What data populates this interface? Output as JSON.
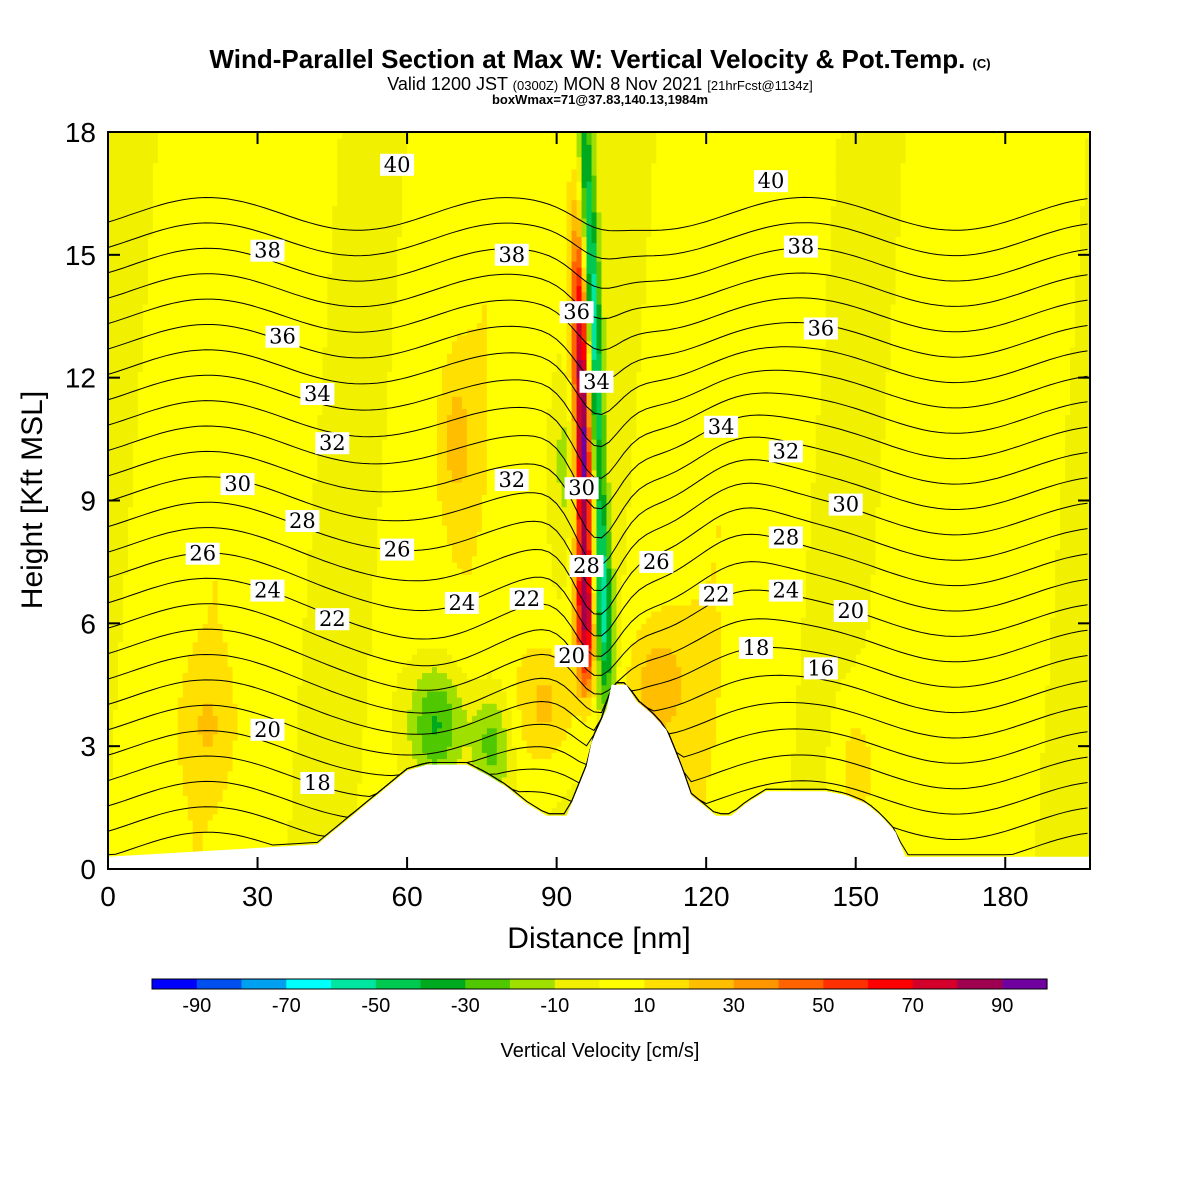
{
  "title": {
    "main": "Wind-Parallel Section at Max W: Vertical Velocity & Pot.Temp.",
    "copyright": "(C)",
    "valid_prefix": "Valid 1200 JST",
    "valid_utc": "(0300Z)",
    "valid_date": "MON 8 Nov 2021",
    "fcst": "[21hrFcst@1134z]",
    "box": "boxWmax=71@37.83,140.13,1984m"
  },
  "chart_data": {
    "type": "heatmap",
    "xlabel": "Distance [nm]",
    "ylabel": "Height [Kft MSL]",
    "xlim": [
      0,
      197
    ],
    "ylim": [
      0,
      18
    ],
    "xticks": [
      0,
      30,
      60,
      90,
      120,
      150,
      180
    ],
    "yticks": [
      0,
      3,
      6,
      9,
      12,
      15,
      18
    ],
    "colorbar": {
      "label": "Vertical Velocity [cm/s]",
      "boundaries": [
        -100,
        -90,
        -80,
        -70,
        -60,
        -50,
        -40,
        -30,
        -20,
        -10,
        0,
        10,
        20,
        30,
        40,
        50,
        60,
        70,
        80,
        90,
        100
      ],
      "tick_labels": [
        "-90",
        "-70",
        "-50",
        "-30",
        "-10",
        "10",
        "30",
        "50",
        "70",
        "90"
      ],
      "tick_values": [
        -90,
        -70,
        -50,
        -30,
        -10,
        10,
        30,
        50,
        70,
        90
      ],
      "colors": [
        "#0000ff",
        "#0050f0",
        "#00a0f0",
        "#00ffff",
        "#00e6a0",
        "#00c850",
        "#00aa1e",
        "#50c800",
        "#a0e000",
        "#f0f000",
        "#ffff00",
        "#ffe000",
        "#ffbe00",
        "#ff9600",
        "#ff6400",
        "#ff3000",
        "#ff0000",
        "#d2002a",
        "#a00050",
        "#7000a0"
      ]
    },
    "terrain_profile": {
      "x": [
        0,
        42,
        45,
        48,
        51,
        54,
        57,
        60,
        64,
        68,
        72,
        76,
        80,
        84,
        88,
        92,
        94,
        96,
        97,
        100,
        101,
        104,
        106,
        109,
        112,
        115,
        117,
        119,
        122,
        125,
        128,
        132,
        136,
        140,
        144,
        148,
        152,
        155,
        158,
        160,
        197
      ],
      "y": [
        0.3,
        0.6,
        0.9,
        1.2,
        1.5,
        1.8,
        2.1,
        2.4,
        2.55,
        2.55,
        2.55,
        2.3,
        2.0,
        1.6,
        1.3,
        1.3,
        1.9,
        2.5,
        3.1,
        3.9,
        4.5,
        4.5,
        4.1,
        3.8,
        3.4,
        2.5,
        1.8,
        1.6,
        1.3,
        1.3,
        1.6,
        1.9,
        1.9,
        1.9,
        1.9,
        1.8,
        1.6,
        1.3,
        0.9,
        0.3,
        0.3
      ]
    },
    "theta_labels": [
      {
        "text": "40",
        "x": 58,
        "y": 17.2
      },
      {
        "text": "38",
        "x": 32,
        "y": 15.1
      },
      {
        "text": "36",
        "x": 35,
        "y": 13.0
      },
      {
        "text": "34",
        "x": 42,
        "y": 11.6
      },
      {
        "text": "32",
        "x": 45,
        "y": 10.4
      },
      {
        "text": "30",
        "x": 26,
        "y": 9.4
      },
      {
        "text": "28",
        "x": 39,
        "y": 8.5
      },
      {
        "text": "26",
        "x": 19,
        "y": 7.7
      },
      {
        "text": "26",
        "x": 58,
        "y": 7.8
      },
      {
        "text": "24",
        "x": 32,
        "y": 6.8
      },
      {
        "text": "22",
        "x": 45,
        "y": 6.1
      },
      {
        "text": "24",
        "x": 71,
        "y": 6.5
      },
      {
        "text": "22",
        "x": 84,
        "y": 6.6
      },
      {
        "text": "38",
        "x": 81,
        "y": 15.0
      },
      {
        "text": "36",
        "x": 94,
        "y": 13.6
      },
      {
        "text": "34",
        "x": 98,
        "y": 11.9
      },
      {
        "text": "32",
        "x": 81,
        "y": 9.5
      },
      {
        "text": "30",
        "x": 95,
        "y": 9.3
      },
      {
        "text": "28",
        "x": 96,
        "y": 7.4
      },
      {
        "text": "26",
        "x": 110,
        "y": 7.5
      },
      {
        "text": "20",
        "x": 93,
        "y": 5.2
      },
      {
        "text": "20",
        "x": 32,
        "y": 3.4
      },
      {
        "text": "18",
        "x": 42,
        "y": 2.1
      },
      {
        "text": "40",
        "x": 133,
        "y": 16.8
      },
      {
        "text": "38",
        "x": 139,
        "y": 15.2
      },
      {
        "text": "36",
        "x": 143,
        "y": 13.2
      },
      {
        "text": "34",
        "x": 123,
        "y": 10.8
      },
      {
        "text": "32",
        "x": 136,
        "y": 10.2
      },
      {
        "text": "30",
        "x": 148,
        "y": 8.9
      },
      {
        "text": "28",
        "x": 136,
        "y": 8.1
      },
      {
        "text": "24",
        "x": 136,
        "y": 6.8
      },
      {
        "text": "22",
        "x": 122,
        "y": 6.7
      },
      {
        "text": "20",
        "x": 149,
        "y": 6.3
      },
      {
        "text": "18",
        "x": 130,
        "y": 5.4
      },
      {
        "text": "16",
        "x": 143,
        "y": 4.9
      }
    ],
    "theta_surface_levels": [
      16,
      17,
      18,
      19,
      20,
      21,
      22,
      23,
      24,
      25,
      26,
      27,
      28,
      29,
      30,
      31,
      32,
      33,
      34,
      35,
      36,
      37,
      38,
      39,
      40,
      41
    ]
  }
}
